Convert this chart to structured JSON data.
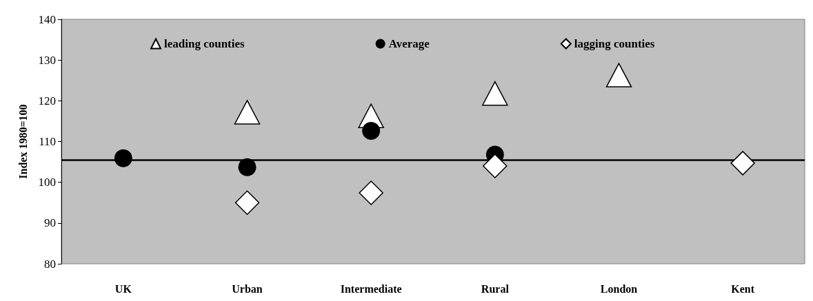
{
  "chart_data": {
    "type": "scatter",
    "ylabel": "Index 1980=100",
    "categories": [
      "UK",
      "Urban",
      "Intermediate",
      "Rural",
      "London",
      "Kent"
    ],
    "series": [
      {
        "name": "leading counties",
        "color": "#ffffff",
        "marker": "triangle",
        "values": [
          null,
          117.2,
          116.3,
          121.8,
          126.3,
          null
        ]
      },
      {
        "name": "Average",
        "color": "#000000",
        "marker": "circle",
        "values": [
          105.9,
          103.7,
          112.6,
          106.8,
          null,
          null
        ]
      },
      {
        "name": "lagging counties",
        "color": "#ffffff",
        "marker": "diamond",
        "values": [
          null,
          95.0,
          97.4,
          104.0,
          null,
          104.7
        ]
      }
    ],
    "ylim": [
      80,
      140
    ],
    "yticks": [
      80,
      90,
      100,
      110,
      120,
      130,
      140
    ],
    "grid": false,
    "legend": "top",
    "ref_lines": [
      {
        "axis": "y",
        "value": 105.4,
        "color": "#000000",
        "line_style": "solid"
      }
    ]
  }
}
